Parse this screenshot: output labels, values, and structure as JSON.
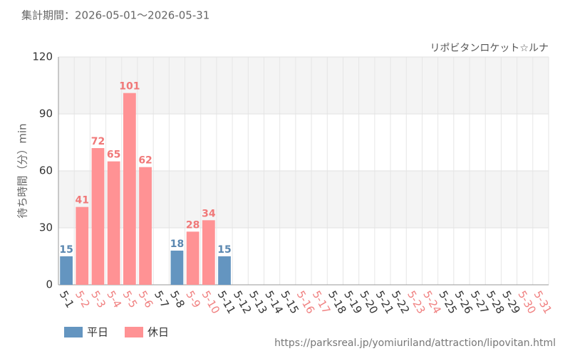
{
  "chart_data": {
    "type": "bar",
    "subtitle": "集計期間：2026-05-01～2026-05-31",
    "annotation": "リポビタンロケット☆ルナ",
    "y_label": "待ち時間（分）min",
    "source": "https://parksreal.jp/yomiuriland/attraction/lipovitan.html",
    "categories": [
      "5-1",
      "5-2",
      "5-3",
      "5-4",
      "5-5",
      "5-6",
      "5-7",
      "5-8",
      "5-9",
      "5-10",
      "5-11",
      "5-12",
      "5-13",
      "5-14",
      "5-15",
      "5-16",
      "5-17",
      "5-18",
      "5-19",
      "5-20",
      "5-21",
      "5-22",
      "5-23",
      "5-24",
      "5-25",
      "5-26",
      "5-27",
      "5-28",
      "5-29",
      "5-30",
      "5-31"
    ],
    "category_label_colors": [
      "#333",
      "#f08080",
      "#f08080",
      "#f08080",
      "#f08080",
      "#f08080",
      "#333",
      "#333",
      "#f08080",
      "#f08080",
      "#333",
      "#333",
      "#333",
      "#333",
      "#333",
      "#f08080",
      "#f08080",
      "#333",
      "#333",
      "#333",
      "#333",
      "#333",
      "#f08080",
      "#f08080",
      "#333",
      "#333",
      "#333",
      "#333",
      "#333",
      "#f08080",
      "#f08080"
    ],
    "series": [
      {
        "name": "平日",
        "color": "#6495c0",
        "label_color": "#5a87b0",
        "values": [
          15,
          null,
          null,
          null,
          null,
          null,
          null,
          18,
          null,
          null,
          15,
          null,
          null,
          null,
          null,
          null,
          null,
          null,
          null,
          null,
          null,
          null,
          null,
          null,
          null,
          null,
          null,
          null,
          null,
          null,
          null
        ]
      },
      {
        "name": "休日",
        "color": "#ff9294",
        "label_color": "#f07878",
        "values": [
          null,
          41,
          72,
          65,
          101,
          62,
          null,
          null,
          28,
          34,
          null,
          null,
          null,
          null,
          null,
          null,
          null,
          null,
          null,
          null,
          null,
          null,
          null,
          null,
          null,
          null,
          null,
          null,
          null,
          null,
          null
        ]
      }
    ],
    "ylim": [
      0,
      120
    ],
    "yticks": [
      0,
      30,
      60,
      90,
      120
    ],
    "grid": true
  }
}
